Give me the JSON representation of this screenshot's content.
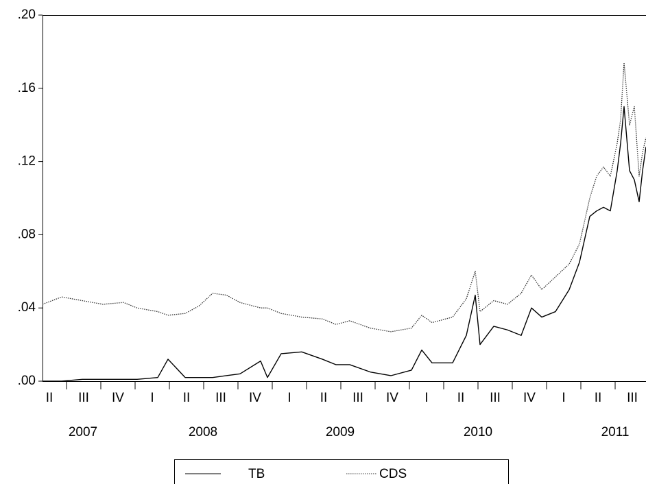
{
  "chart_data": {
    "type": "line",
    "x": [
      2007.325,
      2007.465,
      2007.615,
      2007.765,
      2007.915,
      2008.015,
      2008.165,
      2008.24,
      2008.365,
      2008.465,
      2008.565,
      2008.665,
      2008.765,
      2008.915,
      2008.965,
      2009.065,
      2009.215,
      2009.365,
      2009.465,
      2009.565,
      2009.715,
      2009.865,
      2010.015,
      2010.09,
      2010.165,
      2010.315,
      2010.415,
      2010.48,
      2010.515,
      2010.615,
      2010.715,
      2010.815,
      2010.89,
      2010.965,
      2011.065,
      2011.165,
      2011.24,
      2011.315,
      2011.365,
      2011.415,
      2011.465,
      2011.515,
      2011.54,
      2011.565,
      2011.605,
      2011.64,
      2011.675,
      2011.7,
      2011.725
    ],
    "series": [
      {
        "name": "TB",
        "color": "#000000",
        "dashed": false,
        "values": [
          0.0,
          0.0,
          0.001,
          0.001,
          0.001,
          0.001,
          0.002,
          0.012,
          0.002,
          0.002,
          0.002,
          0.003,
          0.004,
          0.011,
          0.002,
          0.015,
          0.016,
          0.012,
          0.009,
          0.009,
          0.005,
          0.003,
          0.006,
          0.017,
          0.01,
          0.01,
          0.025,
          0.047,
          0.02,
          0.03,
          0.028,
          0.025,
          0.04,
          0.035,
          0.038,
          0.05,
          0.065,
          0.09,
          0.093,
          0.095,
          0.093,
          0.115,
          0.13,
          0.15,
          0.115,
          0.11,
          0.098,
          0.115,
          0.128
        ]
      },
      {
        "name": "CDS",
        "color": "#333333",
        "dashed": true,
        "values": [
          0.042,
          0.046,
          0.044,
          0.042,
          0.043,
          0.04,
          0.038,
          0.036,
          0.037,
          0.041,
          0.048,
          0.047,
          0.043,
          0.04,
          0.04,
          0.037,
          0.035,
          0.034,
          0.031,
          0.033,
          0.029,
          0.027,
          0.029,
          0.036,
          0.032,
          0.035,
          0.045,
          0.06,
          0.038,
          0.044,
          0.042,
          0.048,
          0.058,
          0.05,
          0.057,
          0.064,
          0.075,
          0.1,
          0.112,
          0.117,
          0.112,
          0.13,
          0.143,
          0.174,
          0.14,
          0.15,
          0.112,
          0.125,
          0.133
        ]
      }
    ],
    "xlim": [
      2007.325,
      2011.725
    ],
    "ylim": [
      0,
      0.2
    ],
    "yticks": [
      {
        "value": 0,
        "label": ".00"
      },
      {
        "value": 0.04,
        "label": ".04"
      },
      {
        "value": 0.08,
        "label": ".08"
      },
      {
        "value": 0.12,
        "label": ".12"
      },
      {
        "value": 0.16,
        "label": ".16"
      },
      {
        "value": 0.2,
        "label": ".20"
      }
    ],
    "quarter_labels": [
      {
        "value": 2007.375,
        "label": "II"
      },
      {
        "value": 2007.625,
        "label": "III"
      },
      {
        "value": 2007.875,
        "label": "IV"
      },
      {
        "value": 2008.125,
        "label": "I"
      },
      {
        "value": 2008.375,
        "label": "II"
      },
      {
        "value": 2008.625,
        "label": "III"
      },
      {
        "value": 2008.875,
        "label": "IV"
      },
      {
        "value": 2009.125,
        "label": "I"
      },
      {
        "value": 2009.375,
        "label": "II"
      },
      {
        "value": 2009.625,
        "label": "III"
      },
      {
        "value": 2009.875,
        "label": "IV"
      },
      {
        "value": 2010.125,
        "label": "I"
      },
      {
        "value": 2010.375,
        "label": "II"
      },
      {
        "value": 2010.625,
        "label": "III"
      },
      {
        "value": 2010.875,
        "label": "IV"
      },
      {
        "value": 2011.125,
        "label": "I"
      },
      {
        "value": 2011.375,
        "label": "II"
      },
      {
        "value": 2011.625,
        "label": "III"
      }
    ],
    "year_labels": [
      {
        "value": 2007.62,
        "label": "2007"
      },
      {
        "value": 2008.495,
        "label": "2008"
      },
      {
        "value": 2009.495,
        "label": "2009"
      },
      {
        "value": 2010.5,
        "label": "2010"
      },
      {
        "value": 2011.5,
        "label": "2011"
      }
    ]
  }
}
